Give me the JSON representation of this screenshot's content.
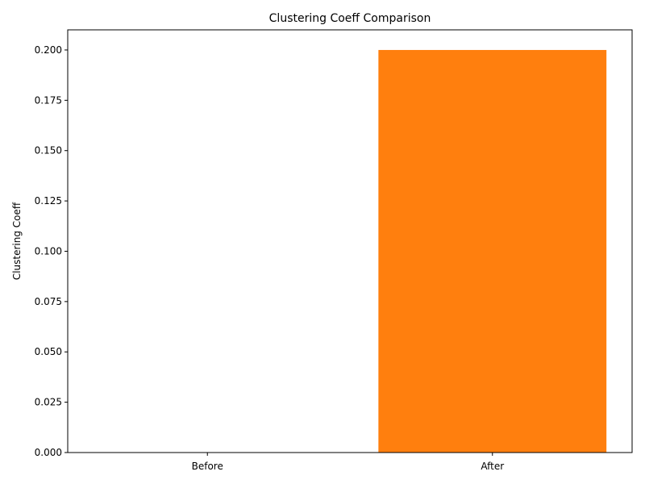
{
  "chart_data": {
    "type": "bar",
    "title": "Clustering Coeff Comparison",
    "xlabel": "",
    "ylabel": "Clustering Coeff",
    "categories": [
      "Before",
      "After"
    ],
    "values": [
      0.0,
      0.2
    ],
    "colors": [
      "#1f77b4",
      "#ff7f0e"
    ],
    "ylim": [
      0,
      0.21
    ],
    "yticks": [
      "0.000",
      "0.025",
      "0.050",
      "0.075",
      "0.100",
      "0.125",
      "0.150",
      "0.175",
      "0.200"
    ],
    "grid": false,
    "legend": "none"
  }
}
